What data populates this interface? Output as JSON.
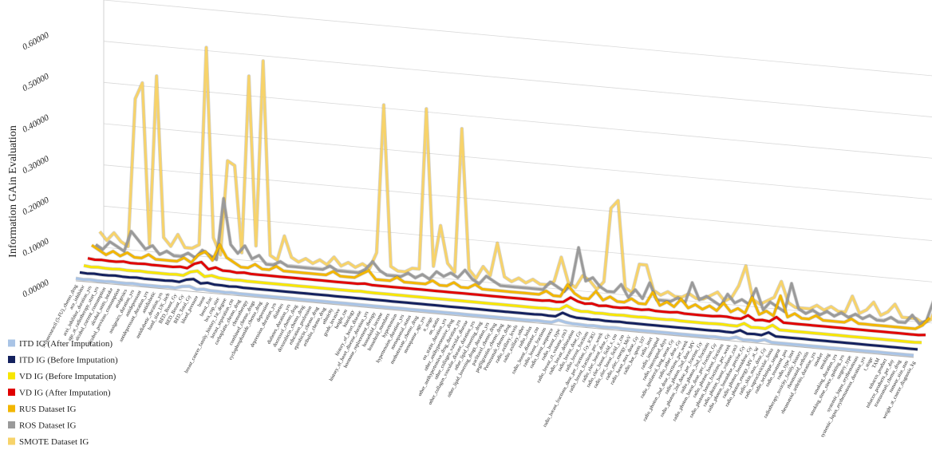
{
  "chart_data": {
    "type": "line3d",
    "y_label": "Information GAin Evaluation",
    "ylim": [
      0,
      0.6
    ],
    "yticks": [
      {
        "value": 0,
        "label": "0.00000"
      },
      {
        "value": 0.1,
        "label": "0.10000"
      },
      {
        "value": 0.2,
        "label": "0.20000"
      },
      {
        "value": 0.3,
        "label": "0.30000"
      },
      {
        "value": 0.4,
        "label": "0.40000"
      },
      {
        "value": 0.5,
        "label": "0.50000"
      },
      {
        "value": 0.6,
        "label": "0.60000"
      }
    ],
    "grid": true,
    "legend": "bottom-left",
    "categories": [
      "5-fluorouracil (5-FU)_chemo_drug",
      "ace_inhibitor",
      "acei_inhibitor_duration_yrs",
      "age_at_radiotherapy_start_yrs",
      "alcohol_current_consumption",
      "alcohol_units_intake",
      "alcohol_previous_consumption",
      "analgesics",
      "analgesics_duration_yrs",
      "antidepressant",
      "antidepressant_duration_yrs",
      "antidiabetic",
      "antidiabetic_duration_yrs",
      "band_size_UK_inch",
      "BED_Boost_Gy",
      "BED_Breast_Gy",
      "BED_Total_Gy",
      "blood_pressure",
      "boost",
      "boost_frac",
      "bra_cup_size",
      "breast_cancer_family_history_1st_degree",
      "breast_separation_cm",
      "carboplatin_chemo_drug",
      "chemotherapy",
      "combined_chemo_drugs",
      "cyclophosphamide_chemo_drug",
      "depression",
      "depression_duration_yrs",
      "diabetes",
      "diabetes_duration_yrs",
      "docetaxel_chemo_drug",
      "doxorubicin_chemo_drug",
      "education_profession",
      "epirubicin_chemo_drug",
      "eribulin_chemo_drug",
      "ethnicity",
      "grade_invasive",
      "height_cm",
      "histology",
      "history_of_heart_disease",
      "history_of_heart_disease_duration_yrs",
      "hormone_replacement_therapy",
      "household_income",
      "household_members",
      "hypertension",
      "hypertension_duration_yrs",
      "menopausal_status",
      "methotrexate_chemo_drug",
      "menopause_age_yrs",
      "n_stage",
      "on_statin",
      "on_statin_duration_yrs",
      "other_antihypertensive_drug",
      "other_antihypertensive_drug_duration_yrs",
      "other_collagen_vascular_disease",
      "other_collagen_vascular_disease_duration_yrs",
      "other_lipid_lowering_drug",
      "other_lipid_lowering_drugs_duration_yrs",
      "paclitaxel_chemo_drug",
      "pegfilgrastim_chemo_drug",
      "Pertuzumab_chemo_drug",
      "radio_axillary_levels",
      "radio_axillary_other",
      "radio_bolus",
      "radio_boost_diameter_cm",
      "radio_boost_fractions",
      "radio_boost_sequence",
      "radio_boost_type",
      "radio_breast_ct_volume_cm3",
      "radio_breast_delineation",
      "radio_breast_dose_Gy",
      "radio_breast_fractions",
      "radio_breast_fractions_dose_per_fraction_Gy_ICRU",
      "radio_breast_fractions_per_week",
      "radio_elec_boost_dose_Gy",
      "radio_elec_boost_field_x_cm",
      "radio_elec_boost_field_y_cm",
      "radio_elec_energy_MeV",
      "radio_heart_max_dose_Gy",
      "radio_hot_spots_107",
      "radio_imrt",
      "radio_interrupted",
      "radio_interrupted_days",
      "radio_ipsilateral_lung_mean_Gy",
      "radio_other_dose_Gy",
      "radio_photon_2nd_dose_fractions_per_week",
      "radio_photon_2nd_dose_MV",
      "radio_photon_2nd_dose_per_fraction_Gy",
      "radio_photon_2nd_fractions",
      "radio_photon_boost_dose_per_fraction_Gy",
      "radio_photon_boost_fractions",
      "radio_photon_boost_fractions_per_week",
      "radio_photon_boost_volume_cm3",
      "radio_photon_boostdose_precise_Gy",
      "radio_photon_boostdose_Gy",
      "radio_photon_energy_MV_at_W",
      "radio_skin_max_dose_Gy",
      "radio_supraclavicular_fossa",
      "radio_technique_tangent",
      "radio_treatment_pos",
      "radio_type_imrt",
      "radiotherapy_toxicity_family_history",
      "rheumatoid_arthritis",
      "rheumatoid_arthritis_duration_yrs",
      "smoker",
      "smoking",
      "smoking_duration_yrs",
      "smoking_time_since_quitting_yrs",
      "surgery_type",
      "systemic_lupus_erythematosus",
      "systemic_lupus_erythematosus_duration_yrs",
      "t_stage",
      "TAM",
      "tobacco_product",
      "tobacco_products_per_day",
      "trastuzumab_chemo_drug",
      "tumour_size_mm",
      "weight_at_cancer_diagnosis_kg"
    ],
    "series": [
      {
        "name": "ITD IG (After Imputation)",
        "color": "#a9c4e6",
        "values": [
          0.006,
          0.005,
          0.006,
          0.005,
          0.005,
          0.006,
          0.005,
          0.005,
          0.006,
          0.005,
          0.005,
          0.005,
          0.005,
          0.006,
          0.005,
          0.01,
          0.012,
          0.006,
          0.008,
          0.006,
          0.006,
          0.005,
          0.006,
          0.005,
          0.005,
          0.005,
          0.005,
          0.005,
          0.005,
          0.005,
          0.005,
          0.005,
          0.005,
          0.005,
          0.005,
          0.005,
          0.005,
          0.005,
          0.005,
          0.005,
          0.005,
          0.005,
          0.005,
          0.005,
          0.005,
          0.005,
          0.005,
          0.005,
          0.005,
          0.005,
          0.005,
          0.005,
          0.005,
          0.005,
          0.005,
          0.005,
          0.005,
          0.005,
          0.005,
          0.005,
          0.005,
          0.005,
          0.005,
          0.005,
          0.005,
          0.006,
          0.005,
          0.005,
          0.012,
          0.008,
          0.006,
          0.006,
          0.005,
          0.006,
          0.005,
          0.005,
          0.006,
          0.005,
          0.005,
          0.005,
          0.005,
          0.005,
          0.005,
          0.005,
          0.005,
          0.005,
          0.005,
          0.005,
          0.005,
          0.005,
          0.006,
          0.005,
          0.005,
          0.01,
          0.005,
          0.006,
          0.005,
          0.01,
          0.005,
          0.005,
          0.005,
          0.005,
          0.005,
          0.005,
          0.005,
          0.005,
          0.005,
          0.005,
          0.005,
          0.005,
          0.005,
          0.005,
          0.005,
          0.005,
          0.005,
          0.005,
          0.005,
          0.005,
          0.005
        ]
      },
      {
        "name": "ITD IG (Before Imputation)",
        "color": "#14215e",
        "values": [
          0.009,
          0.008,
          0.009,
          0.008,
          0.008,
          0.009,
          0.008,
          0.008,
          0.009,
          0.008,
          0.008,
          0.008,
          0.008,
          0.009,
          0.008,
          0.015,
          0.018,
          0.009,
          0.012,
          0.009,
          0.009,
          0.008,
          0.009,
          0.008,
          0.008,
          0.008,
          0.008,
          0.008,
          0.008,
          0.008,
          0.008,
          0.008,
          0.008,
          0.008,
          0.008,
          0.008,
          0.008,
          0.008,
          0.008,
          0.008,
          0.008,
          0.008,
          0.008,
          0.008,
          0.008,
          0.008,
          0.008,
          0.008,
          0.008,
          0.008,
          0.008,
          0.008,
          0.008,
          0.008,
          0.008,
          0.008,
          0.008,
          0.008,
          0.008,
          0.008,
          0.008,
          0.008,
          0.008,
          0.008,
          0.008,
          0.009,
          0.008,
          0.008,
          0.018,
          0.012,
          0.009,
          0.009,
          0.008,
          0.009,
          0.008,
          0.008,
          0.009,
          0.008,
          0.008,
          0.008,
          0.008,
          0.008,
          0.008,
          0.008,
          0.008,
          0.008,
          0.008,
          0.008,
          0.008,
          0.008,
          0.009,
          0.008,
          0.008,
          0.015,
          0.008,
          0.009,
          0.008,
          0.016,
          0.008,
          0.008,
          0.008,
          0.008,
          0.008,
          0.008,
          0.008,
          0.008,
          0.008,
          0.008,
          0.008,
          0.008,
          0.008,
          0.008,
          0.008,
          0.008,
          0.008,
          0.008,
          0.008,
          0.008,
          0.008
        ]
      },
      {
        "name": "VD IG (Before Imputation)",
        "color": "#f7e600",
        "values": [
          0.014,
          0.012,
          0.013,
          0.012,
          0.012,
          0.013,
          0.012,
          0.012,
          0.013,
          0.012,
          0.012,
          0.012,
          0.012,
          0.013,
          0.012,
          0.022,
          0.026,
          0.014,
          0.018,
          0.014,
          0.013,
          0.012,
          0.013,
          0.012,
          0.012,
          0.012,
          0.012,
          0.012,
          0.012,
          0.012,
          0.012,
          0.012,
          0.012,
          0.012,
          0.012,
          0.012,
          0.012,
          0.012,
          0.012,
          0.013,
          0.012,
          0.012,
          0.012,
          0.012,
          0.012,
          0.012,
          0.012,
          0.012,
          0.012,
          0.012,
          0.012,
          0.012,
          0.012,
          0.012,
          0.012,
          0.012,
          0.012,
          0.012,
          0.012,
          0.012,
          0.012,
          0.012,
          0.012,
          0.012,
          0.012,
          0.013,
          0.012,
          0.013,
          0.024,
          0.016,
          0.013,
          0.014,
          0.012,
          0.013,
          0.012,
          0.012,
          0.013,
          0.012,
          0.012,
          0.013,
          0.012,
          0.012,
          0.012,
          0.013,
          0.012,
          0.012,
          0.012,
          0.012,
          0.012,
          0.013,
          0.013,
          0.012,
          0.012,
          0.02,
          0.012,
          0.013,
          0.012,
          0.022,
          0.012,
          0.012,
          0.012,
          0.012,
          0.012,
          0.012,
          0.012,
          0.012,
          0.012,
          0.012,
          0.012,
          0.012,
          0.012,
          0.012,
          0.012,
          0.012,
          0.012,
          0.012,
          0.012,
          0.012,
          0.013
        ]
      },
      {
        "name": "VD IG (After Imputation)",
        "color": "#e00000",
        "values": [
          0.02,
          0.018,
          0.019,
          0.018,
          0.018,
          0.02,
          0.018,
          0.018,
          0.019,
          0.018,
          0.018,
          0.018,
          0.018,
          0.02,
          0.018,
          0.03,
          0.036,
          0.02,
          0.026,
          0.02,
          0.02,
          0.018,
          0.02,
          0.018,
          0.018,
          0.018,
          0.018,
          0.018,
          0.018,
          0.018,
          0.018,
          0.018,
          0.018,
          0.018,
          0.018,
          0.018,
          0.018,
          0.018,
          0.018,
          0.02,
          0.018,
          0.018,
          0.018,
          0.018,
          0.018,
          0.018,
          0.018,
          0.018,
          0.018,
          0.018,
          0.018,
          0.018,
          0.018,
          0.018,
          0.018,
          0.018,
          0.018,
          0.018,
          0.018,
          0.018,
          0.018,
          0.018,
          0.018,
          0.018,
          0.018,
          0.02,
          0.018,
          0.02,
          0.032,
          0.024,
          0.02,
          0.022,
          0.018,
          0.02,
          0.018,
          0.018,
          0.02,
          0.018,
          0.018,
          0.02,
          0.018,
          0.018,
          0.018,
          0.02,
          0.018,
          0.018,
          0.018,
          0.018,
          0.018,
          0.02,
          0.02,
          0.018,
          0.018,
          0.028,
          0.018,
          0.02,
          0.018,
          0.03,
          0.018,
          0.018,
          0.018,
          0.018,
          0.018,
          0.018,
          0.018,
          0.018,
          0.018,
          0.018,
          0.018,
          0.018,
          0.018,
          0.018,
          0.018,
          0.018,
          0.018,
          0.018,
          0.018,
          0.018,
          0.02
        ]
      },
      {
        "name": "RUS Dataset IG",
        "color": "#f2b600",
        "values": [
          0.04,
          0.03,
          0.02,
          0.03,
          0.02,
          0.03,
          0.02,
          0.02,
          0.03,
          0.02,
          0.02,
          0.02,
          0.02,
          0.03,
          0.02,
          0.04,
          0.05,
          0.03,
          0.07,
          0.04,
          0.03,
          0.02,
          0.02,
          0.03,
          0.02,
          0.02,
          0.03,
          0.02,
          0.02,
          0.02,
          0.02,
          0.02,
          0.02,
          0.02,
          0.03,
          0.02,
          0.02,
          0.02,
          0.03,
          0.04,
          0.02,
          0.02,
          0.02,
          0.03,
          0.02,
          0.02,
          0.02,
          0.02,
          0.03,
          0.02,
          0.02,
          0.03,
          0.02,
          0.02,
          0.03,
          0.02,
          0.02,
          0.02,
          0.02,
          0.02,
          0.02,
          0.02,
          0.02,
          0.02,
          0.03,
          0.02,
          0.02,
          0.05,
          0.03,
          0.02,
          0.02,
          0.04,
          0.02,
          0.03,
          0.02,
          0.02,
          0.03,
          0.02,
          0.02,
          0.05,
          0.02,
          0.03,
          0.02,
          0.04,
          0.02,
          0.03,
          0.02,
          0.03,
          0.02,
          0.04,
          0.02,
          0.03,
          0.02,
          0.06,
          0.02,
          0.03,
          0.02,
          0.07,
          0.02,
          0.03,
          0.02,
          0.02,
          0.03,
          0.02,
          0.02,
          0.02,
          0.02,
          0.03,
          0.02,
          0.02,
          0.02,
          0.02,
          0.02,
          0.02,
          0.02,
          0.02,
          0.02,
          0.03,
          0.05
        ]
      },
      {
        "name": "ROS Dataset IG",
        "color": "#9a9a9a",
        "values": [
          0.03,
          0.02,
          0.04,
          0.03,
          0.02,
          0.07,
          0.05,
          0.03,
          0.04,
          0.02,
          0.03,
          0.02,
          0.02,
          0.03,
          0.02,
          0.04,
          0.03,
          0.02,
          0.17,
          0.06,
          0.04,
          0.06,
          0.03,
          0.04,
          0.02,
          0.02,
          0.03,
          0.02,
          0.02,
          0.02,
          0.02,
          0.02,
          0.02,
          0.03,
          0.02,
          0.02,
          0.02,
          0.02,
          0.03,
          0.05,
          0.03,
          0.02,
          0.02,
          0.02,
          0.03,
          0.02,
          0.03,
          0.02,
          0.04,
          0.03,
          0.04,
          0.03,
          0.05,
          0.03,
          0.02,
          0.04,
          0.03,
          0.02,
          0.02,
          0.02,
          0.02,
          0.02,
          0.02,
          0.02,
          0.04,
          0.03,
          0.02,
          0.04,
          0.13,
          0.05,
          0.06,
          0.04,
          0.03,
          0.03,
          0.05,
          0.02,
          0.04,
          0.02,
          0.06,
          0.02,
          0.02,
          0.02,
          0.03,
          0.02,
          0.07,
          0.03,
          0.04,
          0.03,
          0.02,
          0.05,
          0.03,
          0.04,
          0.03,
          0.07,
          0.02,
          0.04,
          0.03,
          0.02,
          0.09,
          0.03,
          0.02,
          0.03,
          0.02,
          0.03,
          0.02,
          0.03,
          0.02,
          0.03,
          0.02,
          0.03,
          0.02,
          0.02,
          0.03,
          0.02,
          0.02,
          0.04,
          0.02,
          0.03,
          0.08
        ]
      },
      {
        "name": "SMOTE Dataset IG",
        "color": "#f7d36a",
        "values": [
          0.05,
          0.03,
          0.05,
          0.03,
          0.02,
          0.38,
          0.42,
          0.03,
          0.44,
          0.05,
          0.03,
          0.06,
          0.03,
          0.03,
          0.04,
          0.52,
          0.06,
          0.02,
          0.25,
          0.24,
          0.03,
          0.46,
          0.05,
          0.5,
          0.03,
          0.02,
          0.08,
          0.03,
          0.02,
          0.03,
          0.02,
          0.03,
          0.02,
          0.04,
          0.02,
          0.03,
          0.02,
          0.03,
          0.02,
          0.06,
          0.42,
          0.03,
          0.02,
          0.02,
          0.03,
          0.03,
          0.42,
          0.04,
          0.14,
          0.05,
          0.03,
          0.38,
          0.04,
          0.02,
          0.05,
          0.03,
          0.11,
          0.03,
          0.02,
          0.03,
          0.02,
          0.03,
          0.02,
          0.02,
          0.03,
          0.09,
          0.03,
          0.02,
          0.05,
          0.04,
          0.02,
          0.04,
          0.22,
          0.24,
          0.03,
          0.02,
          0.09,
          0.09,
          0.03,
          0.02,
          0.03,
          0.02,
          0.02,
          0.03,
          0.02,
          0.02,
          0.03,
          0.04,
          0.02,
          0.03,
          0.06,
          0.11,
          0.03,
          0.02,
          0.03,
          0.04,
          0.08,
          0.03,
          0.02,
          0.02,
          0.02,
          0.03,
          0.02,
          0.03,
          0.02,
          0.02,
          0.06,
          0.02,
          0.03,
          0.05,
          0.02,
          0.03,
          0.05,
          0.02,
          0.02,
          0.02,
          0.01,
          0.02,
          0.06
        ]
      }
    ]
  }
}
